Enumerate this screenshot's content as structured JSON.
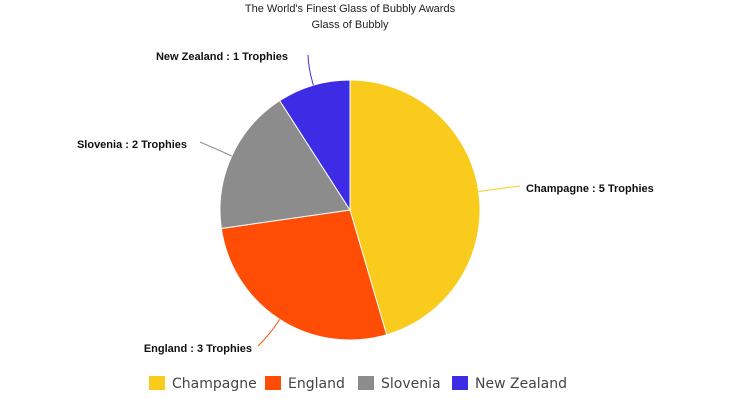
{
  "chart_data": {
    "type": "pie",
    "title": "The World's Finest Glass of Bubbly Awards",
    "subtitle": "Glass of Bubbly",
    "categories": [
      "Champagne",
      "England",
      "Slovenia",
      "New Zealand"
    ],
    "values": [
      5,
      3,
      2,
      1
    ],
    "colors": [
      "#F9CB1C",
      "#FF4D06",
      "#8C8C8C",
      "#3D2BE6"
    ],
    "data_labels": [
      "Champagne : 5 Trophies",
      "England : 3 Trophies",
      "Slovenia : 2 Trophies",
      "New Zealand : 1 Trophies"
    ],
    "start_angle": "top",
    "direction": "clockwise",
    "legend_placement": "bottom"
  }
}
